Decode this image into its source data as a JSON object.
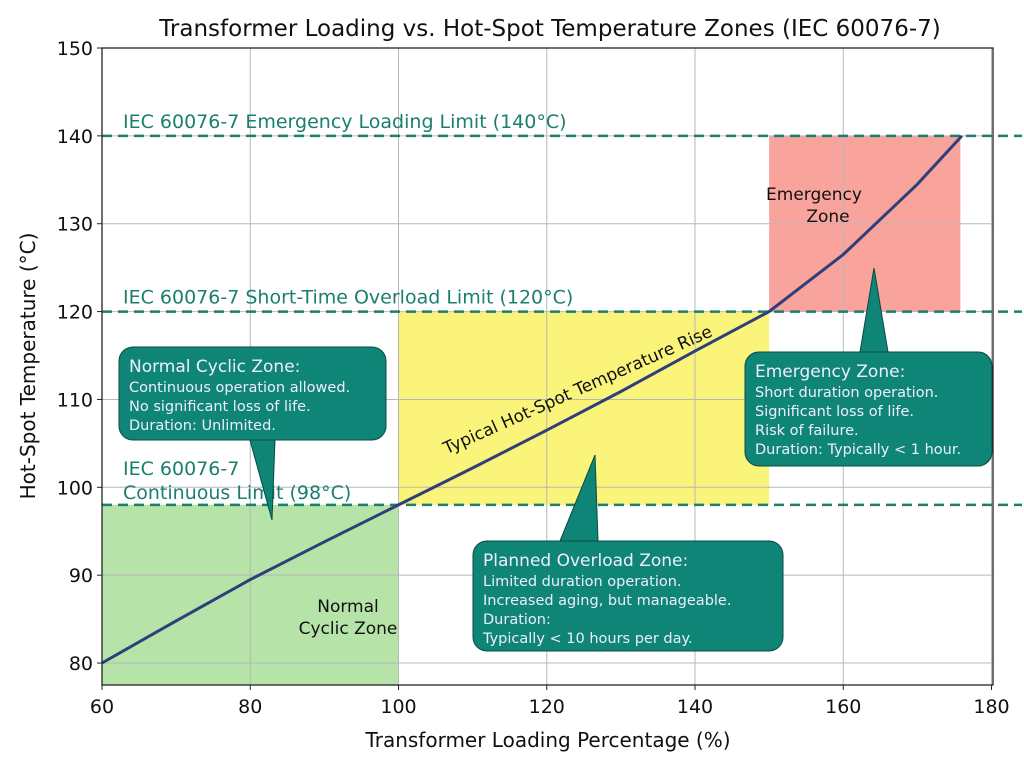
{
  "chart_data": {
    "type": "line",
    "title": "Transformer Loading vs. Hot-Spot Temperature Zones (IEC 60076-7)",
    "xlabel": "Transformer Loading Percentage (%)",
    "ylabel": "Hot-Spot Temperature (°C)",
    "xlim": [
      60,
      180.2
    ],
    "ylim": [
      77.5,
      150
    ],
    "xticks": [
      "60",
      "80",
      "100",
      "120",
      "140",
      "160",
      "180"
    ],
    "yticks": [
      "80",
      "90",
      "100",
      "110",
      "120",
      "130",
      "140",
      "150"
    ],
    "grid": true,
    "series": [
      {
        "name": "Typical Hot-Spot Temperature Rise",
        "color": "#2e3f7a",
        "x": [
          60,
          70,
          80,
          90,
          100,
          110,
          120,
          130,
          140,
          150,
          160,
          170,
          176
        ],
        "y": [
          80,
          84.8,
          89.5,
          93.8,
          98,
          102.2,
          106.5,
          110.9,
          115.5,
          120,
          126.5,
          134.5,
          140
        ]
      }
    ],
    "limits": [
      {
        "label": "IEC 60076-7 Emergency Loading Limit (140°C)",
        "y": 140
      },
      {
        "label": "IEC 60076-7 Short-Time Overload Limit (120°C)",
        "y": 120
      },
      {
        "label_lines": [
          "IEC 60076-7",
          "Continuous Limit (98°C)"
        ],
        "y": 98
      }
    ],
    "limit_color": "#1a7f6e",
    "zones": [
      {
        "label_lines": [
          "Normal",
          "Cyclic Zone"
        ],
        "x": [
          60,
          100
        ],
        "y": [
          77.5,
          98
        ],
        "color": "#b5e3a8"
      },
      {
        "label_lines": [],
        "x": [
          100,
          150
        ],
        "y": [
          98,
          120
        ],
        "color": "#faf47a"
      },
      {
        "label_lines": [
          "Emergency",
          "Zone"
        ],
        "x": [
          150,
          175.8
        ],
        "y": [
          120,
          140
        ],
        "color": "#f8a39c"
      }
    ],
    "callouts": [
      {
        "title": "Normal Cyclic Zone:",
        "lines": [
          "Continuous operation allowed.",
          "No significant loss of life.",
          "Duration: Unlimited."
        ]
      },
      {
        "title": "Planned Overload Zone:",
        "lines": [
          "Limited duration operation.",
          "Increased aging, but manageable.",
          "Duration:",
          "Typically < 10 hours per day."
        ]
      },
      {
        "title": "Emergency Zone:",
        "lines": [
          "Short duration operation.",
          "Significant loss of life.",
          "Risk of failure.",
          "Duration: Typically < 1 hour."
        ]
      }
    ],
    "callout_color": "#0f8577"
  }
}
